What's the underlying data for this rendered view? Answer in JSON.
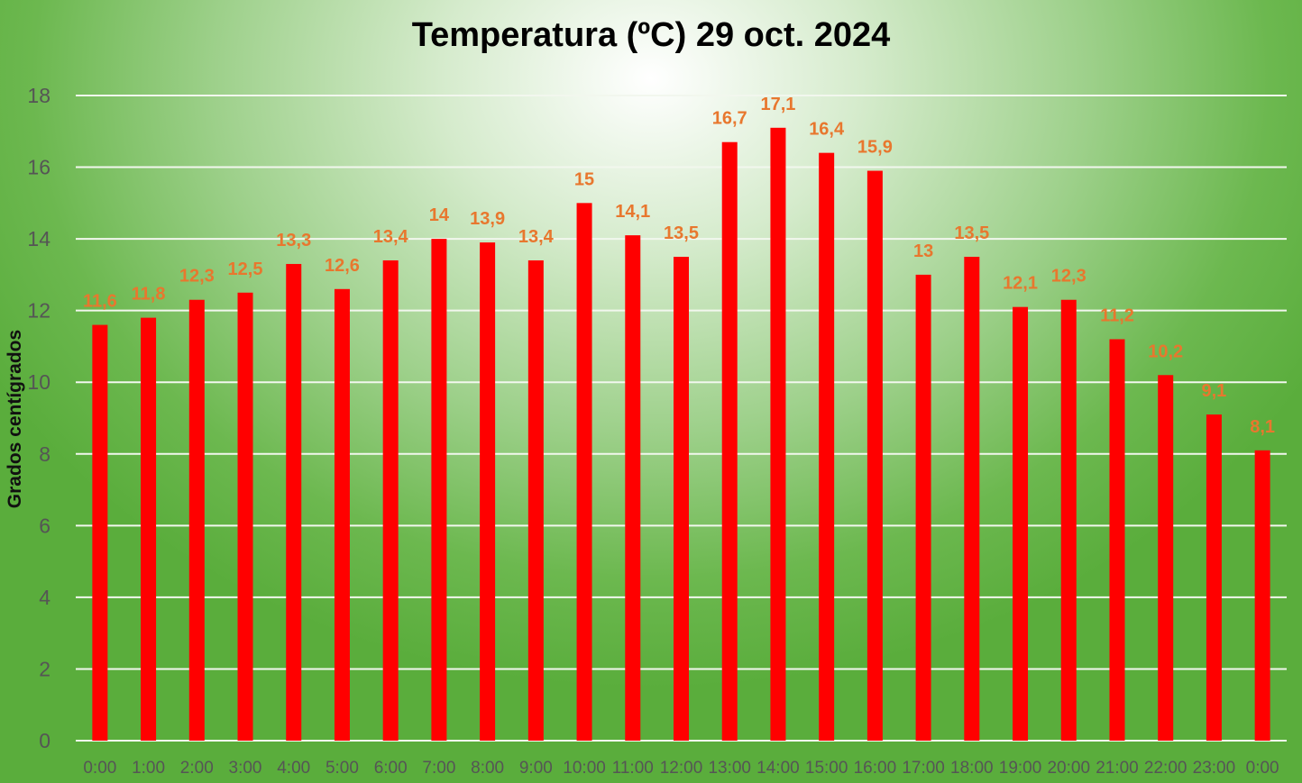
{
  "chart_data": {
    "type": "bar",
    "title": "Temperatura (ºC) 29 oct. 2024",
    "xlabel": "",
    "ylabel": "Grados centígrados",
    "ylim": [
      0,
      18
    ],
    "yticks": [
      "0",
      "2",
      "4",
      "6",
      "8",
      "10",
      "12",
      "14",
      "16",
      "18"
    ],
    "grid": true,
    "legend": "none",
    "categories": [
      "0:00",
      "1:00",
      "2:00",
      "3:00",
      "4:00",
      "5:00",
      "6:00",
      "7:00",
      "8:00",
      "9:00",
      "10:00",
      "11:00",
      "12:00",
      "13:00",
      "14:00",
      "15:00",
      "16:00",
      "17:00",
      "18:00",
      "19:00",
      "20:00",
      "21:00",
      "22:00",
      "23:00",
      "0:00"
    ],
    "values": [
      11.6,
      11.8,
      12.3,
      12.5,
      13.3,
      12.6,
      13.4,
      14,
      13.9,
      13.4,
      15,
      14.1,
      13.5,
      16.7,
      17.1,
      16.4,
      15.9,
      13,
      13.5,
      12.1,
      12.3,
      11.2,
      10.2,
      9.1,
      8.1
    ],
    "data_labels": [
      "11,6",
      "11,8",
      "12,3",
      "12,5",
      "13,3",
      "12,6",
      "13,4",
      "14",
      "13,9",
      "13,4",
      "15",
      "14,1",
      "13,5",
      "16,7",
      "17,1",
      "16,4",
      "15,9",
      "13",
      "13,5",
      "12,1",
      "12,3",
      "11,2",
      "10,2",
      "9,1",
      "8,1"
    ],
    "colors": {
      "bar": "#ff0000",
      "data_label": "#e8772e",
      "gridline": "#f2f7ee",
      "axis_text": "#555555"
    }
  }
}
